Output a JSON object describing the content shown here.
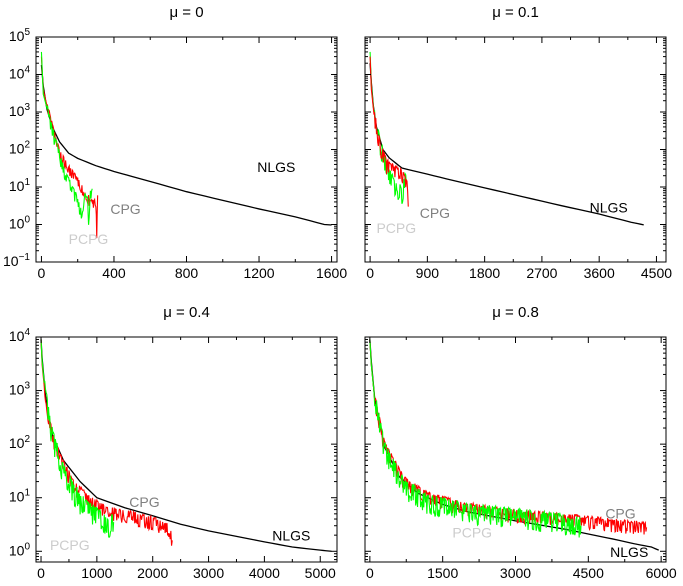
{
  "chart_data": [
    {
      "type": "line",
      "title": "μ = 0",
      "xlim": [
        -30,
        1630
      ],
      "ylim_log10": [
        -1,
        5
      ],
      "y_scale": "log",
      "x_ticks": [
        0,
        400,
        800,
        1200,
        1600
      ],
      "y_ticks": [
        {
          "base": "10",
          "exp": "5"
        },
        {
          "base": "10",
          "exp": "4"
        },
        {
          "base": "10",
          "exp": "3"
        },
        {
          "base": "10",
          "exp": "2"
        },
        {
          "base": "10",
          "exp": "1"
        },
        {
          "base": "10",
          "exp": "0"
        },
        {
          "base": "10",
          "exp": "−1"
        }
      ],
      "grid": false,
      "series": [
        {
          "name": "NLGS",
          "color": "#000000",
          "noise": 0,
          "x": [
            0,
            10,
            30,
            60,
            100,
            150,
            200,
            300,
            400,
            600,
            800,
            1000,
            1200,
            1400,
            1560,
            1600
          ],
          "y": [
            18000,
            5000,
            1200,
            400,
            160,
            80,
            58,
            37,
            26,
            14,
            7.5,
            4.4,
            2.6,
            1.6,
            1.0,
            0.97
          ]
        },
        {
          "name": "CPG",
          "color": "#ff0000",
          "noise": 0.12,
          "x": [
            0,
            10,
            30,
            60,
            100,
            150,
            200,
            240,
            260,
            270,
            280,
            290,
            300,
            305,
            310
          ],
          "y": [
            30000,
            4000,
            1500,
            400,
            80,
            30,
            15,
            6,
            5,
            3.5,
            4.0,
            3.8,
            4.2,
            0.5,
            6
          ]
        },
        {
          "name": "PCPG",
          "color": "#00ff00",
          "noise": 0.15,
          "x": [
            0,
            10,
            30,
            60,
            90,
            120,
            150,
            180,
            200,
            220,
            240,
            255,
            260,
            270,
            280
          ],
          "y": [
            40000,
            3000,
            1300,
            300,
            100,
            30,
            13,
            7,
            4,
            2,
            5,
            4,
            1.5,
            6,
            9
          ]
        }
      ],
      "annotations": [
        {
          "text": "NLGS",
          "x": 1190,
          "y": 25
        },
        {
          "text": "CPG",
          "x": 380,
          "y": 1.9
        },
        {
          "text": "PCPG",
          "x": 150,
          "y": 0.3
        }
      ]
    },
    {
      "type": "line",
      "title": "μ = 0.1",
      "xlim": [
        -80,
        4650
      ],
      "ylim_log10": [
        -1,
        5
      ],
      "y_scale": "log",
      "x_ticks": [
        0,
        900,
        1800,
        2700,
        3600,
        4500
      ],
      "y_ticks": [],
      "grid": false,
      "series": [
        {
          "name": "NLGS",
          "color": "#000000",
          "noise": 0,
          "x": [
            0,
            20,
            50,
            100,
            200,
            300,
            500,
            900,
            1300,
            1800,
            2400,
            3000,
            3600,
            4100,
            4300
          ],
          "y": [
            20000,
            6000,
            1500,
            400,
            100,
            60,
            32,
            22,
            15,
            9.5,
            5.5,
            3.2,
            1.9,
            1.15,
            0.98
          ]
        },
        {
          "name": "PCPG",
          "color": "#00ff00",
          "noise": 0.25,
          "x": [
            0,
            20,
            60,
            150,
            250,
            300,
            350,
            400,
            450,
            500,
            540,
            570
          ],
          "y": [
            40000,
            5000,
            1000,
            150,
            35,
            20,
            15,
            8,
            10,
            6,
            15,
            12
          ]
        },
        {
          "name": "CPG",
          "color": "#ff0000",
          "noise": 0.2,
          "x": [
            0,
            20,
            60,
            150,
            250,
            400,
            500,
            550,
            580,
            600
          ],
          "y": [
            30000,
            4000,
            900,
            130,
            40,
            25,
            20,
            14,
            10,
            3
          ]
        }
      ],
      "annotations": [
        {
          "text": "NLGS",
          "x": 3450,
          "y": 2.1
        },
        {
          "text": "CPG",
          "x": 780,
          "y": 1.5
        },
        {
          "text": "PCPG",
          "x": 100,
          "y": 0.6
        }
      ]
    },
    {
      "type": "line",
      "title": "μ = 0.4",
      "xlim": [
        -90,
        5300
      ],
      "ylim_log10": [
        -0.2,
        4
      ],
      "y_scale": "log",
      "x_ticks": [
        0,
        1000,
        2000,
        3000,
        4000,
        5000
      ],
      "y_ticks": [
        {
          "base": "10",
          "exp": "4"
        },
        {
          "base": "10",
          "exp": "3"
        },
        {
          "base": "10",
          "exp": "2"
        },
        {
          "base": "10",
          "exp": "1"
        },
        {
          "base": "10",
          "exp": "0"
        }
      ],
      "grid": false,
      "series": [
        {
          "name": "NLGS",
          "color": "#000000",
          "noise": 0,
          "x": [
            0,
            20,
            80,
            200,
            400,
            700,
            1000,
            1500,
            2000,
            2500,
            3000,
            3500,
            4000,
            4500,
            5000,
            5200
          ],
          "y": [
            9000,
            4000,
            800,
            150,
            50,
            20,
            10,
            6.5,
            4.6,
            3.2,
            2.4,
            1.9,
            1.5,
            1.2,
            1.05,
            1.0
          ]
        },
        {
          "name": "CPG",
          "color": "#ff0000",
          "noise": 0.12,
          "x": [
            0,
            20,
            80,
            200,
            400,
            600,
            900,
            1200,
            1600,
            2000,
            2300,
            2350
          ],
          "y": [
            9000,
            3000,
            700,
            140,
            40,
            16,
            8,
            5.5,
            4.5,
            3.5,
            2.5,
            1.6
          ]
        },
        {
          "name": "PCPG",
          "color": "#00ff00",
          "noise": 0.2,
          "x": [
            0,
            20,
            80,
            200,
            400,
            600,
            800,
            1000,
            1100,
            1200,
            1300
          ],
          "y": [
            9000,
            3500,
            800,
            140,
            30,
            12,
            6.5,
            4.5,
            3.5,
            3.0,
            3.5
          ]
        }
      ],
      "annotations": [
        {
          "text": "NLGS",
          "x": 4140,
          "y": 1.6
        },
        {
          "text": "CPG",
          "x": 1580,
          "y": 6.7
        },
        {
          "text": "PCPG",
          "x": 160,
          "y": 1.05
        }
      ]
    },
    {
      "type": "line",
      "title": "μ = 0.8",
      "xlim": [
        -100,
        6100
      ],
      "ylim_log10": [
        -0.2,
        4
      ],
      "y_scale": "log",
      "x_ticks": [
        0,
        1500,
        3000,
        4500,
        6000
      ],
      "y_ticks": [],
      "grid": false,
      "series": [
        {
          "name": "NLGS",
          "color": "#000000",
          "noise": 0,
          "x": [
            0,
            30,
            100,
            300,
            600,
            1000,
            1500,
            2000,
            3000,
            4000,
            4500,
            5000,
            5500,
            5800,
            5950
          ],
          "y": [
            9000,
            3500,
            700,
            90,
            25,
            12,
            7.5,
            5.5,
            3.7,
            2.6,
            2.1,
            1.7,
            1.35,
            1.2,
            1.05
          ]
        },
        {
          "name": "CPG",
          "color": "#ff0000",
          "noise": 0.12,
          "x": [
            0,
            30,
            100,
            300,
            700,
            1200,
            2000,
            3000,
            4000,
            5000,
            5700
          ],
          "y": [
            9000,
            3000,
            700,
            90,
            20,
            10,
            6.5,
            4.7,
            4.0,
            3.2,
            2.8
          ]
        },
        {
          "name": "PCPG",
          "color": "#00ff00",
          "noise": 0.18,
          "x": [
            0,
            30,
            100,
            300,
            700,
            1200,
            2000,
            3000,
            3800,
            4350
          ],
          "y": [
            9000,
            3000,
            700,
            80,
            16,
            8,
            5.5,
            4.5,
            3.6,
            3.0
          ]
        }
      ],
      "annotations": [
        {
          "text": "NLGS",
          "x": 4950,
          "y": 0.78
        },
        {
          "text": "CPG",
          "x": 4850,
          "y": 4.1
        },
        {
          "text": "PCPG",
          "x": 1700,
          "y": 1.8
        }
      ]
    }
  ]
}
